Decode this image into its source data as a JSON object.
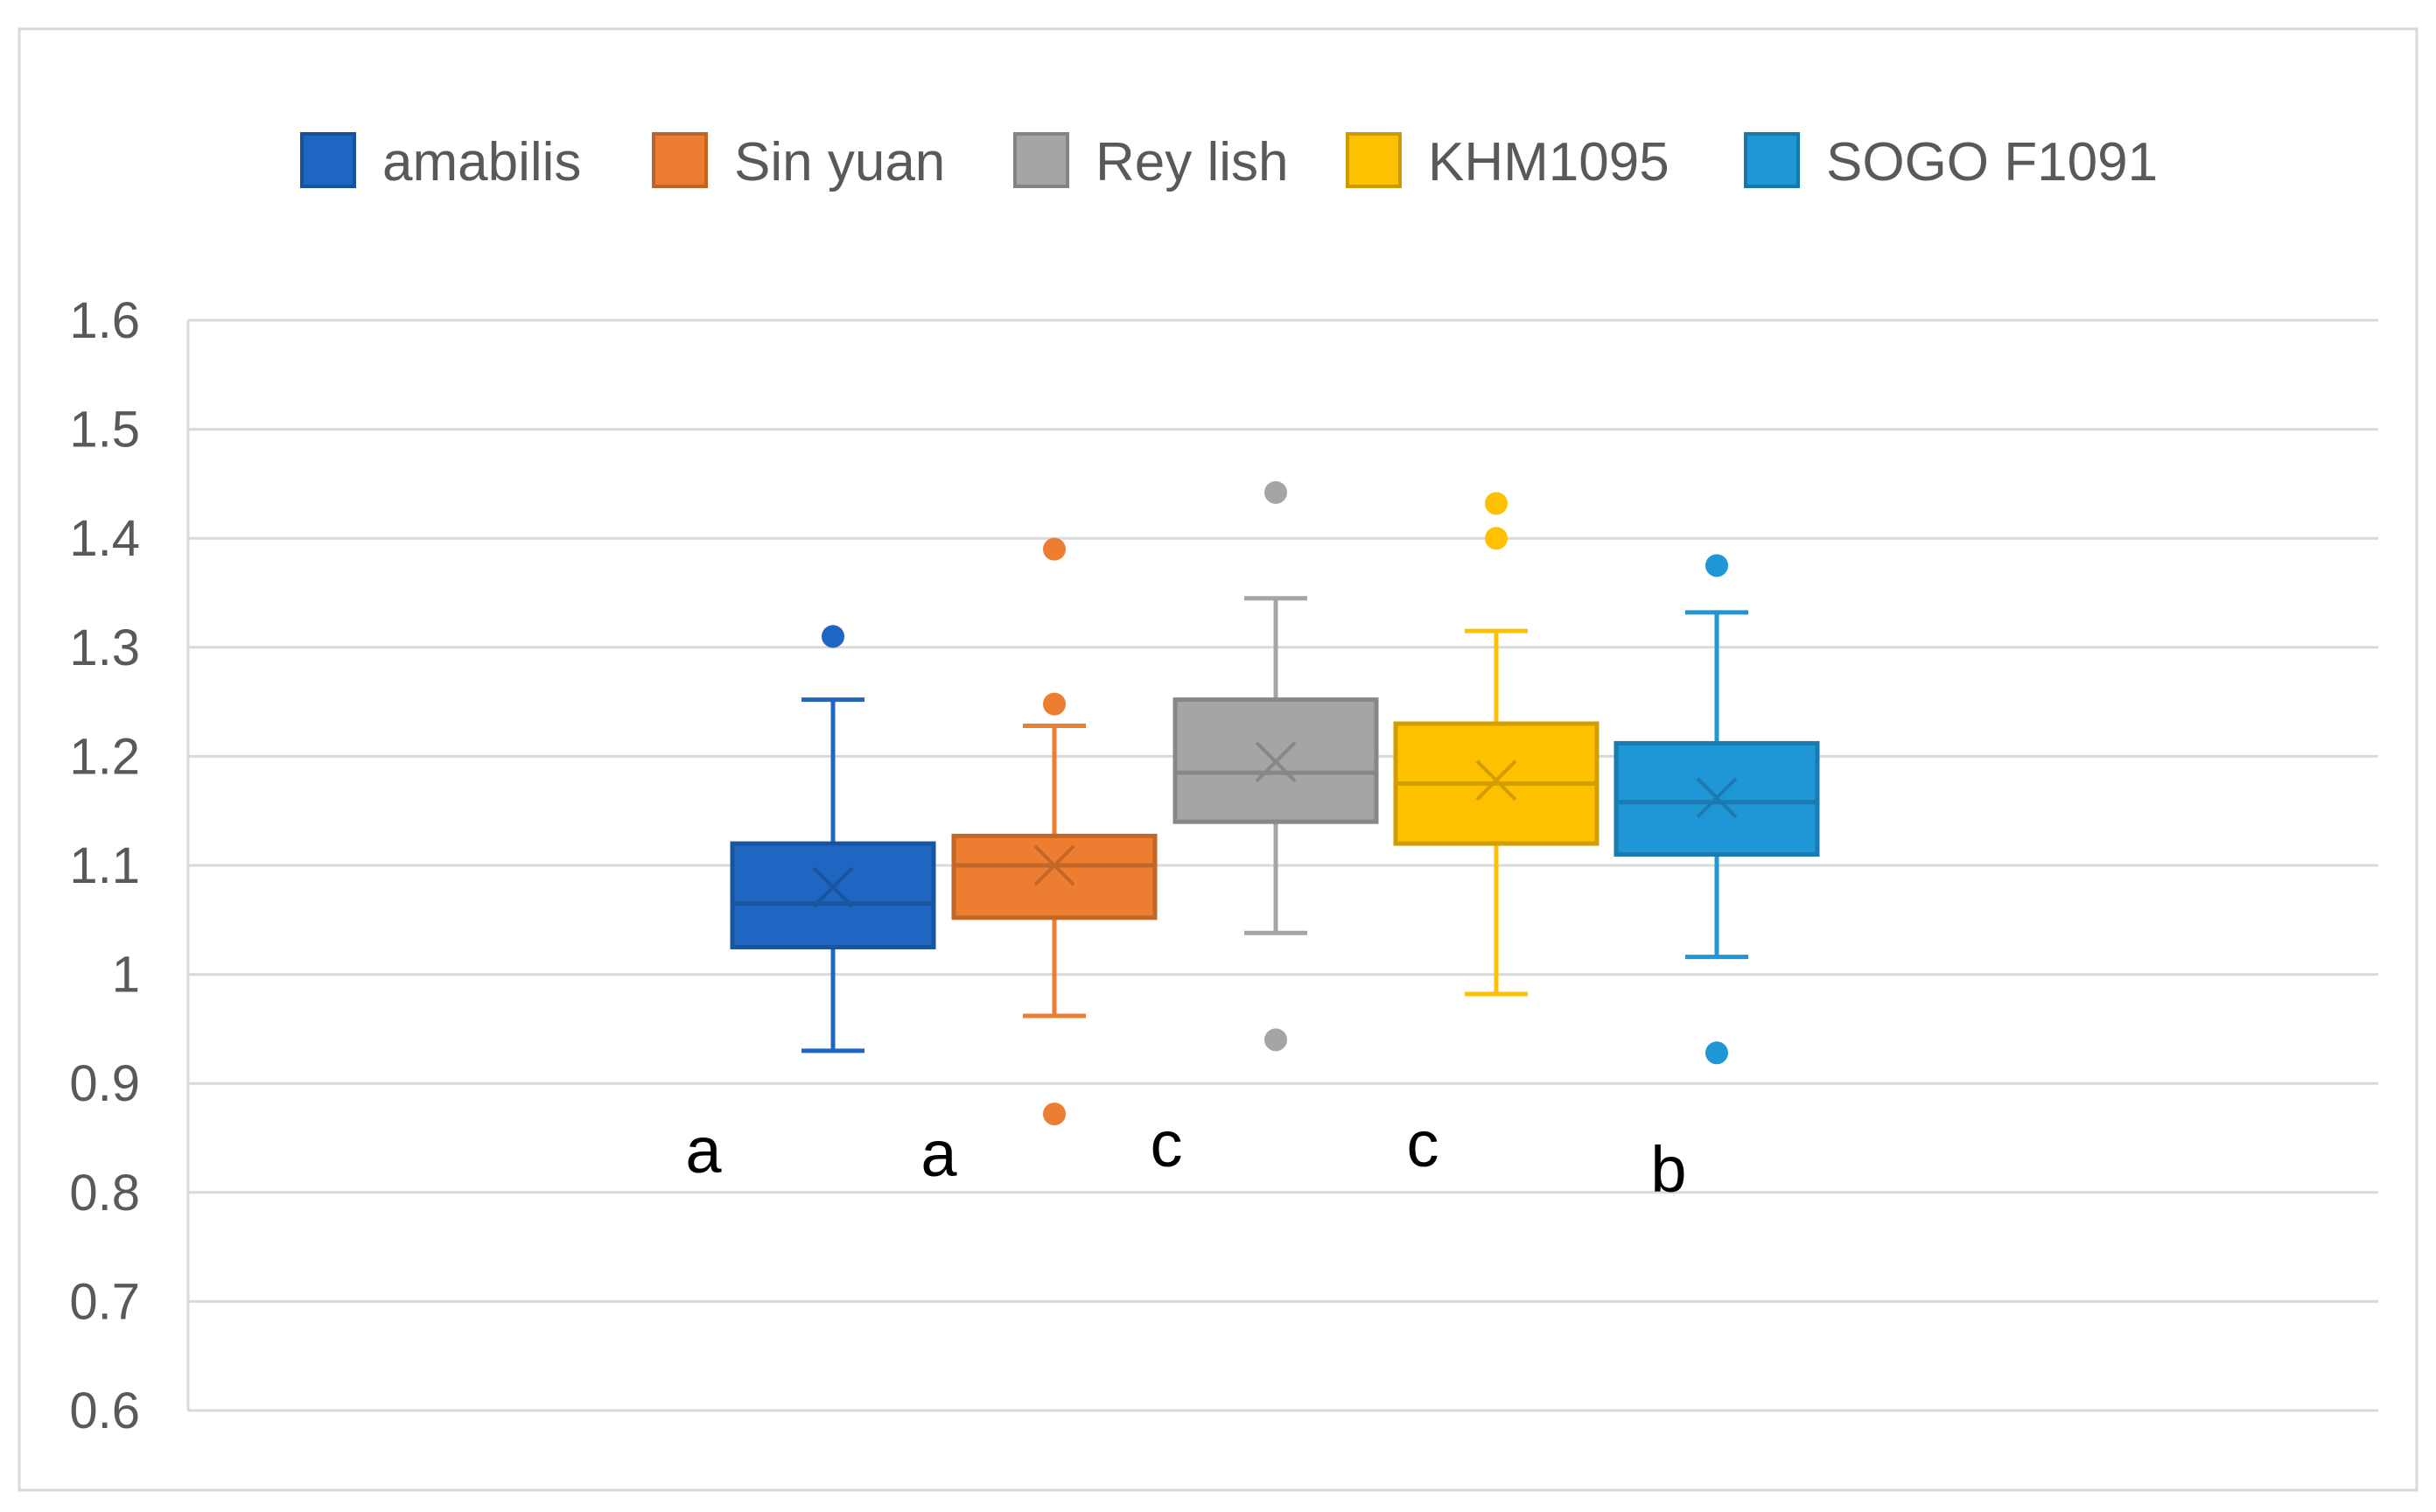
{
  "chart_data": {
    "type": "box",
    "title": "",
    "xlabel": "",
    "ylabel": "",
    "ylim": [
      0.6,
      1.6
    ],
    "yticks": [
      "1.6",
      "1.5",
      "1.4",
      "1.3",
      "1.2",
      "1.1",
      "1",
      "0.9",
      "0.8",
      "0.7",
      "0.6"
    ],
    "grid": true,
    "legend_position": "top",
    "series": [
      {
        "name": "amabilis",
        "color": "#1f66c2",
        "min": 0.93,
        "q1": 1.025,
        "median": 1.065,
        "mean": 1.08,
        "q3": 1.12,
        "max": 1.252,
        "outliers": [
          1.31
        ],
        "letter": "a"
      },
      {
        "name": "Sin yuan",
        "color": "#ed7d31",
        "min": 0.962,
        "q1": 1.052,
        "median": 1.1,
        "mean": 1.1,
        "q3": 1.127,
        "max": 1.228,
        "outliers": [
          1.39,
          1.248,
          0.872
        ],
        "letter": "a"
      },
      {
        "name": "Rey lish",
        "color": "#a5a5a5",
        "min": 1.038,
        "q1": 1.14,
        "median": 1.185,
        "mean": 1.195,
        "q3": 1.252,
        "max": 1.345,
        "outliers": [
          1.442,
          0.94
        ],
        "letter": "c"
      },
      {
        "name": "KHM1095",
        "color": "#ffc000",
        "min": 0.982,
        "q1": 1.12,
        "median": 1.175,
        "mean": 1.178,
        "q3": 1.23,
        "max": 1.315,
        "outliers": [
          1.432,
          1.4
        ],
        "letter": "c"
      },
      {
        "name": "SOGO F1091",
        "color": "#1f96d6",
        "min": 1.016,
        "q1": 1.11,
        "median": 1.158,
        "mean": 1.162,
        "q3": 1.212,
        "max": 1.332,
        "outliers": [
          1.375,
          0.928
        ],
        "letter": "b"
      }
    ]
  }
}
